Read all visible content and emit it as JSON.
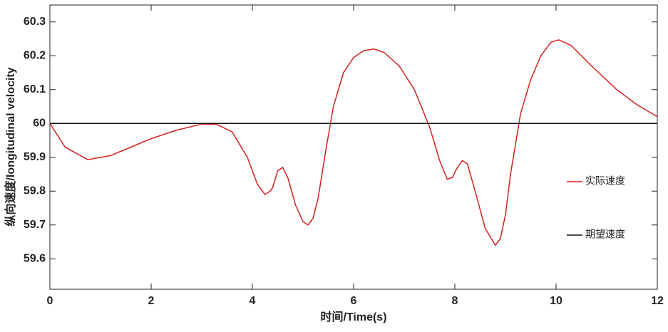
{
  "chart_data": {
    "type": "line",
    "xlabel": "时间/Time(s)",
    "ylabel": "纵向速度/longitudinal velocity",
    "xlim": [
      0,
      12
    ],
    "ylim": [
      59.51,
      60.35
    ],
    "xticks": [
      0,
      2,
      4,
      6,
      8,
      10,
      12
    ],
    "yticks": [
      59.6,
      59.7,
      59.8,
      59.9,
      60,
      60.1,
      60.2,
      60.3
    ],
    "legend": "right",
    "series": [
      {
        "name": "实际速度",
        "color": "#d62020",
        "x": [
          0,
          0.3,
          0.75,
          1.2,
          2,
          2.5,
          3,
          3.3,
          3.6,
          3.9,
          4.1,
          4.25,
          4.35,
          4.4,
          4.5,
          4.6,
          4.7,
          4.85,
          5,
          5.1,
          5.2,
          5.3,
          5.45,
          5.6,
          5.8,
          6,
          6.2,
          6.4,
          6.6,
          6.9,
          7.2,
          7.5,
          7.7,
          7.85,
          7.95,
          8.05,
          8.15,
          8.25,
          8.4,
          8.6,
          8.8,
          8.9,
          9,
          9.1,
          9.3,
          9.5,
          9.7,
          9.9,
          10.05,
          10.3,
          10.7,
          11.2,
          11.6,
          12
        ],
        "values": [
          60,
          59.93,
          59.893,
          59.905,
          59.955,
          59.98,
          59.998,
          59.997,
          59.975,
          59.9,
          59.82,
          59.79,
          59.8,
          59.81,
          59.86,
          59.87,
          59.84,
          59.76,
          59.71,
          59.7,
          59.72,
          59.78,
          59.92,
          60.05,
          60.15,
          60.195,
          60.215,
          60.22,
          60.21,
          60.17,
          60.1,
          59.99,
          59.89,
          59.835,
          59.84,
          59.87,
          59.89,
          59.88,
          59.8,
          59.69,
          59.64,
          59.66,
          59.73,
          59.85,
          60.03,
          60.13,
          60.2,
          60.24,
          60.247,
          60.23,
          60.17,
          60.1,
          60.055,
          60.02
        ]
      },
      {
        "name": "期望速度",
        "color": "#111111",
        "x": [
          0,
          12
        ],
        "values": [
          60,
          60
        ]
      }
    ]
  }
}
